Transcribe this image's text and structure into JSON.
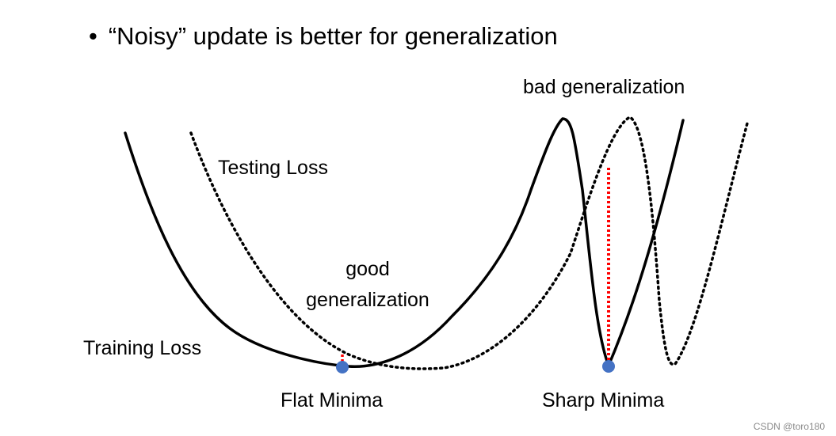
{
  "title": {
    "bullet": "•",
    "text": "“Noisy” update is better for generalization"
  },
  "labels": {
    "bad_generalization": "bad generalization",
    "testing_loss": "Testing Loss",
    "good_generalization": "good generalization",
    "training_loss": "Training Loss",
    "flat_minima": "Flat Minima",
    "sharp_minima": "Sharp Minima"
  },
  "watermark": "CSDN @toro180",
  "colors": {
    "curve": "#000000",
    "gap_marker": "#ff0000",
    "minimum_dot": "#4472c4"
  }
}
